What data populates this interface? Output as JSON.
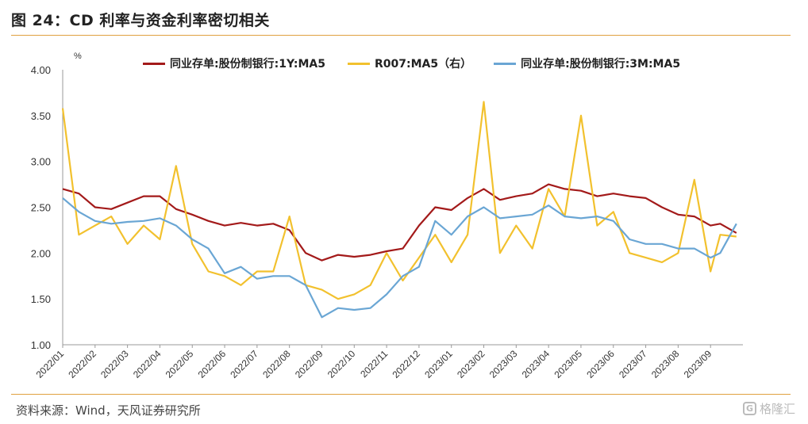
{
  "header": {
    "title": "图 24：CD 利率与资金利率密切相关"
  },
  "footer": {
    "source": "资料来源：Wind，天风证券研究所",
    "watermark": "格隆汇",
    "watermark_logo": "G"
  },
  "chart_data": {
    "type": "line",
    "ylabel": "%",
    "ylim": [
      1.0,
      4.0
    ],
    "yticks": [
      "1.00",
      "1.50",
      "2.00",
      "2.50",
      "3.00",
      "3.50",
      "4.00"
    ],
    "categories": [
      "2022/01",
      "2022/02",
      "2022/03",
      "2022/04",
      "2022/05",
      "2022/06",
      "2022/07",
      "2022/08",
      "2022/09",
      "2022/10",
      "2022/11",
      "2022/12",
      "2023/01",
      "2023/02",
      "2023/03",
      "2023/04",
      "2023/05",
      "2023/06",
      "2023/07",
      "2023/08",
      "2023/09"
    ],
    "x": [
      0,
      0.5,
      1,
      1.5,
      2,
      2.5,
      3,
      3.5,
      4,
      4.5,
      5,
      5.5,
      6,
      6.5,
      7,
      7.5,
      8,
      8.5,
      9,
      9.5,
      10,
      10.5,
      11,
      11.5,
      12,
      12.5,
      13,
      13.5,
      14,
      14.5,
      15,
      15.5,
      16,
      16.5,
      17,
      17.5,
      18,
      18.5,
      19,
      19.5,
      20,
      20.3,
      20.8
    ],
    "legend_position": "top",
    "series": [
      {
        "name": "同业存单:股份制银行:1Y:MA5",
        "color": "#a31a1a",
        "values": [
          2.7,
          2.65,
          2.5,
          2.48,
          2.55,
          2.62,
          2.62,
          2.48,
          2.42,
          2.35,
          2.3,
          2.33,
          2.3,
          2.32,
          2.25,
          2.0,
          1.92,
          1.98,
          1.96,
          1.98,
          2.02,
          2.05,
          2.3,
          2.5,
          2.47,
          2.6,
          2.7,
          2.58,
          2.62,
          2.65,
          2.75,
          2.7,
          2.68,
          2.62,
          2.65,
          2.62,
          2.6,
          2.5,
          2.42,
          2.4,
          2.3,
          2.32,
          2.22
        ]
      },
      {
        "name": "R007:MA5（右）",
        "color": "#f2c12e",
        "values": [
          3.58,
          2.2,
          2.3,
          2.4,
          2.1,
          2.3,
          2.15,
          2.95,
          2.1,
          1.8,
          1.75,
          1.65,
          1.8,
          1.8,
          2.4,
          1.65,
          1.6,
          1.5,
          1.55,
          1.65,
          2.0,
          1.7,
          1.95,
          2.2,
          1.9,
          2.2,
          3.65,
          2.0,
          2.3,
          2.05,
          2.7,
          2.4,
          3.5,
          2.3,
          2.45,
          2.0,
          1.95,
          1.9,
          2.0,
          2.8,
          1.8,
          2.2,
          2.18
        ]
      },
      {
        "name": "同业存单:股份制银行:3M:MA5",
        "color": "#6aa6d4",
        "values": [
          2.6,
          2.45,
          2.35,
          2.32,
          2.34,
          2.35,
          2.38,
          2.3,
          2.15,
          2.05,
          1.78,
          1.85,
          1.72,
          1.75,
          1.75,
          1.65,
          1.3,
          1.4,
          1.38,
          1.4,
          1.55,
          1.75,
          1.85,
          2.35,
          2.2,
          2.4,
          2.5,
          2.38,
          2.4,
          2.42,
          2.52,
          2.4,
          2.38,
          2.4,
          2.35,
          2.15,
          2.1,
          2.1,
          2.05,
          2.05,
          1.95,
          2.0,
          2.32
        ]
      }
    ]
  }
}
